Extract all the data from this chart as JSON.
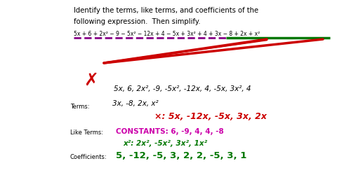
{
  "bg_color": "#ffffff",
  "title_text1": "Identify the terms, like terms, and coefficients of the",
  "title_text2": "following expression.  Then simplify.",
  "expression": "5x + 6 + 2x² − 9 − 5x² − 12x + 4 − 5x + 3x² + 4 + 3x − 8 + 2x + x²",
  "terms_label": "Terms:",
  "terms_line1": "5x, 6, 2x², -9, -5x², -12x, 4, -5x, 3x², 4",
  "terms_line2": "3x, -8, 2x, x²",
  "terms_x_line": "×: 5x, -12x, -5x, 3x, 2x",
  "liketerms_label": "Like Terms:",
  "constants_text": "CONSTANTS: 6, -9, 4, 4, -8",
  "x2_terms": "x²: 2x², -5x², 3x², 1x²",
  "coefficients_label": "Coefficients:",
  "coefficients_text": "5, -12, -5, 3, 2, 2, -5, 3, 1",
  "color_black": "#000000",
  "color_red": "#cc0000",
  "color_magenta": "#cc00aa",
  "color_green": "#007700",
  "color_purple": "#880088",
  "fontsize_title": 7.2,
  "fontsize_expr": 5.5,
  "fontsize_terms": 7.5,
  "fontsize_labels": 6.0,
  "fontsize_coeff": 9.5
}
